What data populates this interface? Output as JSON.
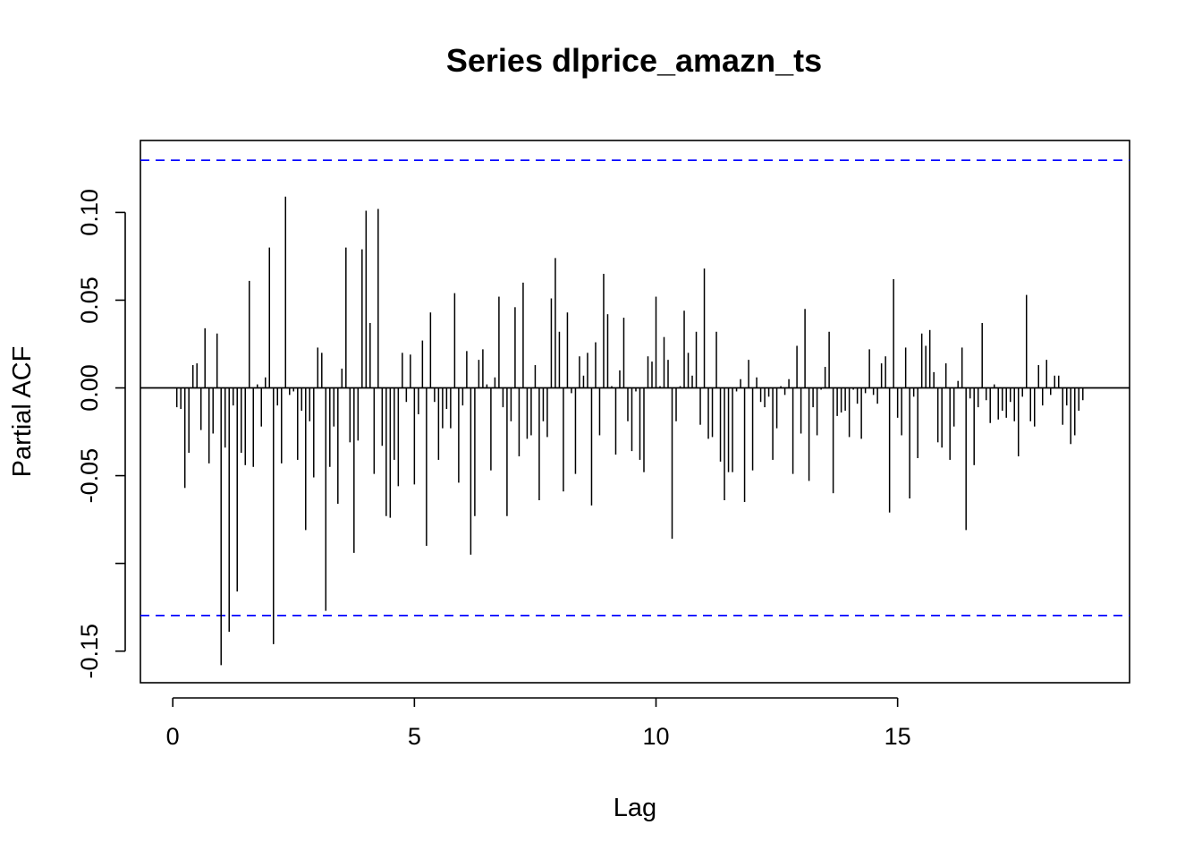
{
  "chart_data": {
    "type": "bar",
    "title": "Series  dlprice_amazn_ts",
    "xlabel": "Lag",
    "ylabel": "Partial ACF",
    "xlim": [
      -0.67,
      19.8
    ],
    "ylim": [
      -0.168,
      0.141
    ],
    "x_ticks": [
      0,
      5,
      10,
      15
    ],
    "x_tick_labels": [
      "0",
      "5",
      "10",
      "15"
    ],
    "y_ticks": [
      -0.15,
      -0.1,
      -0.05,
      0.0,
      0.05,
      0.1
    ],
    "y_tick_labels": [
      "-0.15",
      "",
      "-0.05",
      "0.00",
      "0.05",
      "0.10"
    ],
    "confidence_limit": 0.1297,
    "confidence_color": "#0000ff",
    "bar_color": "#000000",
    "grid": false,
    "lag_step": 0.0833333,
    "values": [
      -0.011,
      -0.012,
      -0.057,
      -0.037,
      0.013,
      0.014,
      -0.024,
      0.034,
      -0.043,
      -0.026,
      0.031,
      -0.158,
      -0.034,
      -0.139,
      -0.01,
      -0.116,
      -0.037,
      -0.044,
      0.061,
      -0.045,
      0.002,
      -0.022,
      0.006,
      0.08,
      -0.146,
      -0.01,
      -0.043,
      0.109,
      -0.004,
      -0.002,
      -0.041,
      -0.013,
      -0.081,
      -0.019,
      -0.051,
      0.023,
      0.02,
      -0.127,
      -0.045,
      -0.022,
      -0.066,
      0.011,
      0.08,
      -0.031,
      -0.094,
      -0.03,
      0.079,
      0.101,
      0.037,
      -0.049,
      0.102,
      -0.033,
      -0.073,
      -0.074,
      -0.041,
      -0.056,
      0.02,
      -0.008,
      0.019,
      -0.055,
      -0.015,
      0.027,
      -0.09,
      0.043,
      -0.008,
      -0.041,
      -0.023,
      -0.012,
      -0.023,
      0.054,
      -0.054,
      -0.01,
      0.021,
      -0.095,
      -0.073,
      0.016,
      0.022,
      0.002,
      -0.047,
      0.006,
      0.052,
      -0.011,
      -0.073,
      -0.019,
      0.046,
      -0.039,
      0.06,
      -0.029,
      -0.027,
      0.013,
      -0.064,
      -0.019,
      -0.028,
      0.051,
      0.074,
      0.032,
      -0.059,
      0.043,
      -0.003,
      -0.049,
      0.018,
      0.007,
      0.02,
      -0.067,
      0.026,
      -0.027,
      0.065,
      0.042,
      0.001,
      -0.038,
      0.01,
      0.04,
      -0.019,
      -0.036,
      -0.002,
      -0.041,
      -0.048,
      0.018,
      0.015,
      0.052,
      0.001,
      0.029,
      0.016,
      -0.086,
      -0.019,
      0.001,
      0.044,
      0.02,
      0.007,
      0.032,
      -0.021,
      0.068,
      -0.029,
      -0.028,
      0.032,
      -0.042,
      -0.064,
      -0.048,
      -0.048,
      -0.002,
      0.005,
      -0.065,
      0.016,
      -0.047,
      0.006,
      -0.008,
      -0.011,
      -0.005,
      -0.041,
      -0.023,
      0.001,
      -0.004,
      0.005,
      -0.049,
      0.024,
      -0.026,
      0.045,
      -0.053,
      -0.011,
      -0.027,
      -0.001,
      0.012,
      0.032,
      -0.06,
      -0.016,
      -0.014,
      -0.013,
      -0.028,
      -0.001,
      -0.009,
      -0.029,
      -0.003,
      0.022,
      -0.004,
      -0.009,
      0.014,
      0.018,
      -0.071,
      0.062,
      -0.017,
      -0.027,
      0.023,
      -0.063,
      -0.005,
      -0.04,
      0.031,
      0.024,
      0.033,
      0.009,
      -0.031,
      -0.034,
      0.014,
      -0.041,
      -0.022,
      0.004,
      0.023,
      -0.081,
      -0.006,
      -0.044,
      -0.011,
      0.037,
      -0.007,
      -0.02,
      0.002,
      -0.018,
      -0.013,
      -0.017,
      -0.008,
      -0.019,
      -0.039,
      -0.005,
      0.053,
      -0.019,
      -0.022,
      0.013,
      -0.01,
      0.016,
      -0.004,
      0.007,
      0.007,
      -0.021,
      -0.01,
      -0.032,
      -0.027,
      -0.013,
      -0.007
    ]
  }
}
